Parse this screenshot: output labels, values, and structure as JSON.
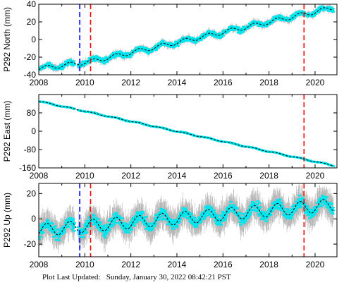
{
  "footer": {
    "label": "Plot Last Updated:",
    "timestamp": "Sunday, January 30, 2022 08:42:21 PST"
  },
  "colors": {
    "data_points": "#00e5ee",
    "error_bars": "#b8b8b8",
    "model_line": "#000000",
    "event_blue": "#0000ff",
    "event_red": "#ff0000"
  },
  "chart_data": [
    {
      "type": "scatter",
      "ylabel": "P292 North (mm)",
      "xlim": [
        2008,
        2020.95
      ],
      "ylim": [
        -40,
        40
      ],
      "xticks": [
        2008,
        2010,
        2012,
        2014,
        2016,
        2018,
        2020
      ],
      "yticks": [
        -40,
        -20,
        0,
        20,
        40
      ],
      "grid": false,
      "event_lines": [
        {
          "x": 2009.78,
          "color": "blue"
        },
        {
          "x": 2010.25,
          "color": "red"
        },
        {
          "x": 2019.52,
          "color": "red"
        }
      ],
      "trend": {
        "x": [
          2008.0,
          2010.25,
          2020.8
        ],
        "y": [
          -33,
          -25,
          36
        ]
      },
      "seasonal_amplitude": 2.5,
      "scatter_noise": 2.5,
      "error_bar": 3
    },
    {
      "type": "scatter",
      "ylabel": "P292 East (mm)",
      "xlim": [
        2008,
        2020.95
      ],
      "ylim": [
        -160,
        160
      ],
      "xticks": [
        2008,
        2010,
        2012,
        2014,
        2016,
        2018,
        2020
      ],
      "yticks": [
        -160,
        -80,
        0,
        80
      ],
      "grid": false,
      "event_lines": [
        {
          "x": 2019.52,
          "color": "red"
        }
      ],
      "trend": {
        "x": [
          2008.0,
          2020.8
        ],
        "y": [
          131,
          -150
        ]
      },
      "seasonal_amplitude": 2,
      "scatter_noise": 1.5,
      "error_bar": 3
    },
    {
      "type": "scatter",
      "ylabel": "P292 Up (mm)",
      "xlim": [
        2008,
        2020.95
      ],
      "ylim": [
        -30,
        28
      ],
      "xticks": [
        2008,
        2010,
        2012,
        2014,
        2016,
        2018,
        2020
      ],
      "yticks": [
        -20,
        0,
        20
      ],
      "grid": false,
      "event_lines": [
        {
          "x": 2009.78,
          "color": "blue"
        },
        {
          "x": 2010.25,
          "color": "red"
        },
        {
          "x": 2019.52,
          "color": "red"
        }
      ],
      "trend": {
        "x": [
          2008.0,
          2020.8
        ],
        "y": [
          -9,
          11
        ]
      },
      "seasonal_amplitude": 5,
      "scatter_noise": 4,
      "error_bar": 9
    }
  ]
}
